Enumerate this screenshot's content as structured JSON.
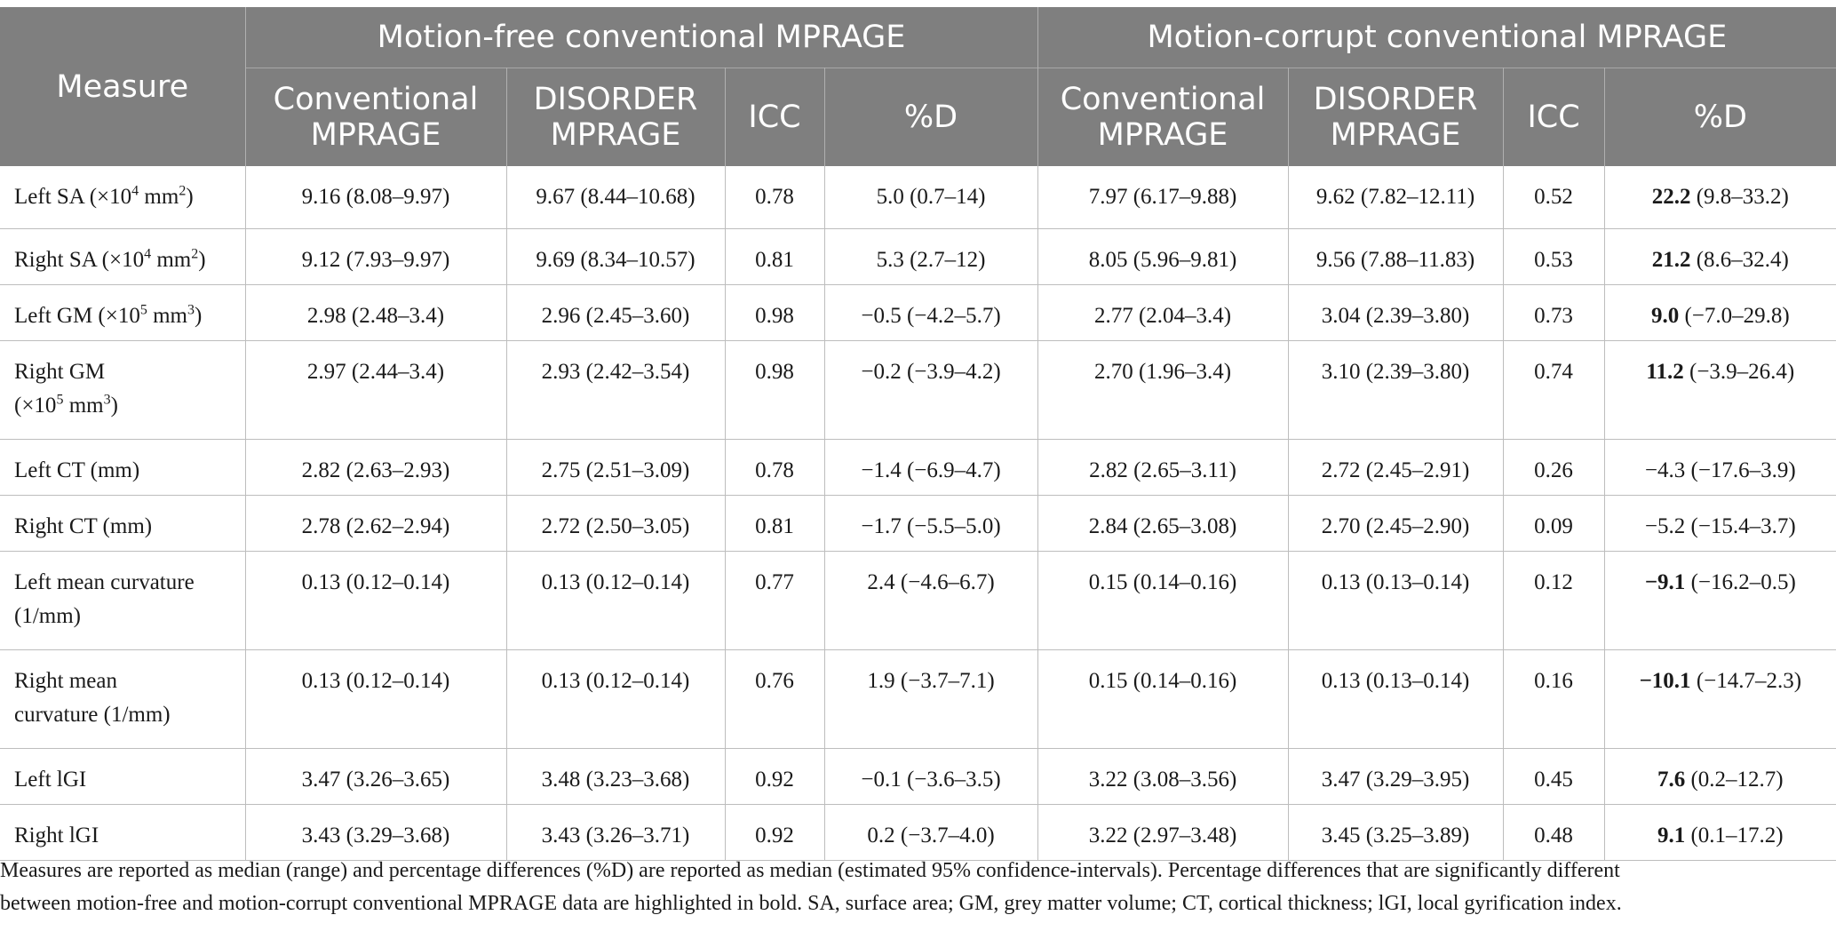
{
  "header": {
    "measure": "Measure",
    "group_free": "Motion-free conventional MPRAGE",
    "group_corrupt": "Motion-corrupt conventional MPRAGE",
    "sub": {
      "conv_line1": "Conventional",
      "conv_line2": "MPRAGE",
      "dis_line1": "DISORDER",
      "dis_line2": "MPRAGE",
      "icc": "ICC",
      "pd": "%D"
    }
  },
  "rows": [
    {
      "m1": "Left SA (×10",
      "sup": "4",
      "m2": " mm",
      "sup2": "2",
      "m3": ")",
      "m_line2": "",
      "v1": "9.16 (8.08–9.97)",
      "v2": "9.67 (8.44–10.68)",
      "v3": "0.78",
      "v4": "5.0 (0.7–14)",
      "v5": "7.97 (6.17–9.88)",
      "v6": "9.62 (7.82–12.11)",
      "v7": "0.52",
      "v8b": "22.2",
      "v8": " (9.8–33.2)"
    },
    {
      "m1": "Right SA (×10",
      "sup": "4",
      "m2": " mm",
      "sup2": "2",
      "m3": ")",
      "m_line2": "",
      "v1": "9.12 (7.93–9.97)",
      "v2": "9.69 (8.34–10.57)",
      "v3": "0.81",
      "v4": "5.3 (2.7–12)",
      "v5": "8.05 (5.96–9.81)",
      "v6": "9.56 (7.88–11.83)",
      "v7": "0.53",
      "v8b": "21.2",
      "v8": " (8.6–32.4)"
    },
    {
      "m1": "Left GM (×10",
      "sup": "5",
      "m2": " mm",
      "sup2": "3",
      "m3": ")",
      "m_line2": "",
      "v1": "2.98 (2.48–3.4)",
      "v2": "2.96 (2.45–3.60)",
      "v3": "0.98",
      "v4": "−0.5 (−4.2–5.7)",
      "v5": "2.77 (2.04–3.4)",
      "v6": "3.04 (2.39–3.80)",
      "v7": "0.73",
      "v8b": "9.0",
      "v8": " (−7.0–29.8)"
    },
    {
      "m1": "Right GM",
      "m_line2a": "(×10",
      "sup": "5",
      "m2": " mm",
      "sup2": "3",
      "m3": ")",
      "v1": "2.97 (2.44–3.4)",
      "v2": "2.93 (2.42–3.54)",
      "v3": "0.98",
      "v4": "−0.2 (−3.9–4.2)",
      "v5": "2.70 (1.96–3.4)",
      "v6": "3.10 (2.39–3.80)",
      "v7": "0.74",
      "v8b": "11.2",
      "v8": " (−3.9–26.4)"
    },
    {
      "m1": "Left CT (mm)",
      "v1": "2.82 (2.63–2.93)",
      "v2": "2.75 (2.51–3.09)",
      "v3": "0.78",
      "v4": "−1.4 (−6.9–4.7)",
      "v5": "2.82 (2.65–3.11)",
      "v6": "2.72 (2.45–2.91)",
      "v7": "0.26",
      "v8b": "",
      "v8": "−4.3 (−17.6–3.9)"
    },
    {
      "m1": "Right CT (mm)",
      "v1": "2.78 (2.62–2.94)",
      "v2": "2.72 (2.50–3.05)",
      "v3": "0.81",
      "v4": "−1.7 (−5.5–5.0)",
      "v5": "2.84 (2.65–3.08)",
      "v6": "2.70 (2.45–2.90)",
      "v7": "0.09",
      "v8b": "",
      "v8": "−5.2 (−15.4–3.7)"
    },
    {
      "m1": "Left mean curvature",
      "m_line2": "(1/mm)",
      "v1": "0.13 (0.12–0.14)",
      "v2": "0.13 (0.12–0.14)",
      "v3": "0.77",
      "v4": "2.4 (−4.6–6.7)",
      "v5": "0.15 (0.14–0.16)",
      "v6": "0.13 (0.13–0.14)",
      "v7": "0.12",
      "v8b": "−9.1",
      "v8": " (−16.2–0.5)"
    },
    {
      "m1": "Right mean",
      "m_line2": "curvature (1/mm)",
      "v1": "0.13 (0.12–0.14)",
      "v2": "0.13 (0.12–0.14)",
      "v3": "0.76",
      "v4": "1.9 (−3.7–7.1)",
      "v5": "0.15 (0.14–0.16)",
      "v6": "0.13 (0.13–0.14)",
      "v7": "0.16",
      "v8b": "−10.1",
      "v8": " (−14.7–2.3)"
    },
    {
      "m1": "Left lGI",
      "v1": "3.47 (3.26–3.65)",
      "v2": "3.48 (3.23–3.68)",
      "v3": "0.92",
      "v4": "−0.1 (−3.6–3.5)",
      "v5": "3.22 (3.08–3.56)",
      "v6": "3.47 (3.29–3.95)",
      "v7": "0.45",
      "v8b": "7.6",
      "v8": " (0.2–12.7)"
    },
    {
      "m1": "Right lGI",
      "v1": "3.43 (3.29–3.68)",
      "v2": "3.43 (3.26–3.71)",
      "v3": "0.92",
      "v4": "0.2 (−3.7–4.0)",
      "v5": "3.22 (2.97–3.48)",
      "v6": "3.45 (3.25–3.89)",
      "v7": "0.48",
      "v8b": "9.1",
      "v8": " (0.1–17.2)"
    }
  ],
  "footnote": {
    "line1": "Measures are reported as median (range) and percentage differences (%D) are reported as median (estimated 95% confidence-intervals). Percentage differences that are significantly different",
    "line2": "between motion-free and motion-corrupt conventional MPRAGE data are highlighted in bold. SA, surface area; GM, grey matter volume; CT, cortical thickness; lGI, local gyrification index."
  }
}
